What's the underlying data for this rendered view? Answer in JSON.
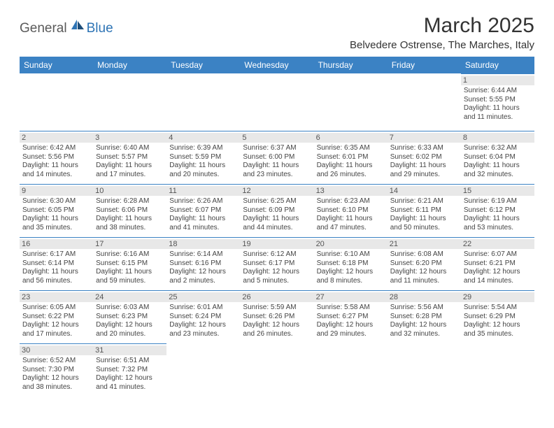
{
  "logo": {
    "part1": "General",
    "part2": "Blue"
  },
  "title": "March 2025",
  "subtitle": "Belvedere Ostrense, The Marches, Italy",
  "colors": {
    "header_bg": "#3b82c4",
    "header_text": "#ffffff",
    "cell_border": "#3b82c4",
    "daynum_bg": "#e8e8e8",
    "logo_grey": "#5a5a5a",
    "logo_blue": "#2e74b5",
    "body_text": "#444"
  },
  "dayNames": [
    "Sunday",
    "Monday",
    "Tuesday",
    "Wednesday",
    "Thursday",
    "Friday",
    "Saturday"
  ],
  "weeks": [
    [
      null,
      null,
      null,
      null,
      null,
      null,
      {
        "n": "1",
        "sr": "6:44 AM",
        "ss": "5:55 PM",
        "dl": "11 hours and 11 minutes."
      }
    ],
    [
      {
        "n": "2",
        "sr": "6:42 AM",
        "ss": "5:56 PM",
        "dl": "11 hours and 14 minutes."
      },
      {
        "n": "3",
        "sr": "6:40 AM",
        "ss": "5:57 PM",
        "dl": "11 hours and 17 minutes."
      },
      {
        "n": "4",
        "sr": "6:39 AM",
        "ss": "5:59 PM",
        "dl": "11 hours and 20 minutes."
      },
      {
        "n": "5",
        "sr": "6:37 AM",
        "ss": "6:00 PM",
        "dl": "11 hours and 23 minutes."
      },
      {
        "n": "6",
        "sr": "6:35 AM",
        "ss": "6:01 PM",
        "dl": "11 hours and 26 minutes."
      },
      {
        "n": "7",
        "sr": "6:33 AM",
        "ss": "6:02 PM",
        "dl": "11 hours and 29 minutes."
      },
      {
        "n": "8",
        "sr": "6:32 AM",
        "ss": "6:04 PM",
        "dl": "11 hours and 32 minutes."
      }
    ],
    [
      {
        "n": "9",
        "sr": "6:30 AM",
        "ss": "6:05 PM",
        "dl": "11 hours and 35 minutes."
      },
      {
        "n": "10",
        "sr": "6:28 AM",
        "ss": "6:06 PM",
        "dl": "11 hours and 38 minutes."
      },
      {
        "n": "11",
        "sr": "6:26 AM",
        "ss": "6:07 PM",
        "dl": "11 hours and 41 minutes."
      },
      {
        "n": "12",
        "sr": "6:25 AM",
        "ss": "6:09 PM",
        "dl": "11 hours and 44 minutes."
      },
      {
        "n": "13",
        "sr": "6:23 AM",
        "ss": "6:10 PM",
        "dl": "11 hours and 47 minutes."
      },
      {
        "n": "14",
        "sr": "6:21 AM",
        "ss": "6:11 PM",
        "dl": "11 hours and 50 minutes."
      },
      {
        "n": "15",
        "sr": "6:19 AM",
        "ss": "6:12 PM",
        "dl": "11 hours and 53 minutes."
      }
    ],
    [
      {
        "n": "16",
        "sr": "6:17 AM",
        "ss": "6:14 PM",
        "dl": "11 hours and 56 minutes."
      },
      {
        "n": "17",
        "sr": "6:16 AM",
        "ss": "6:15 PM",
        "dl": "11 hours and 59 minutes."
      },
      {
        "n": "18",
        "sr": "6:14 AM",
        "ss": "6:16 PM",
        "dl": "12 hours and 2 minutes."
      },
      {
        "n": "19",
        "sr": "6:12 AM",
        "ss": "6:17 PM",
        "dl": "12 hours and 5 minutes."
      },
      {
        "n": "20",
        "sr": "6:10 AM",
        "ss": "6:18 PM",
        "dl": "12 hours and 8 minutes."
      },
      {
        "n": "21",
        "sr": "6:08 AM",
        "ss": "6:20 PM",
        "dl": "12 hours and 11 minutes."
      },
      {
        "n": "22",
        "sr": "6:07 AM",
        "ss": "6:21 PM",
        "dl": "12 hours and 14 minutes."
      }
    ],
    [
      {
        "n": "23",
        "sr": "6:05 AM",
        "ss": "6:22 PM",
        "dl": "12 hours and 17 minutes."
      },
      {
        "n": "24",
        "sr": "6:03 AM",
        "ss": "6:23 PM",
        "dl": "12 hours and 20 minutes."
      },
      {
        "n": "25",
        "sr": "6:01 AM",
        "ss": "6:24 PM",
        "dl": "12 hours and 23 minutes."
      },
      {
        "n": "26",
        "sr": "5:59 AM",
        "ss": "6:26 PM",
        "dl": "12 hours and 26 minutes."
      },
      {
        "n": "27",
        "sr": "5:58 AM",
        "ss": "6:27 PM",
        "dl": "12 hours and 29 minutes."
      },
      {
        "n": "28",
        "sr": "5:56 AM",
        "ss": "6:28 PM",
        "dl": "12 hours and 32 minutes."
      },
      {
        "n": "29",
        "sr": "5:54 AM",
        "ss": "6:29 PM",
        "dl": "12 hours and 35 minutes."
      }
    ],
    [
      {
        "n": "30",
        "sr": "6:52 AM",
        "ss": "7:30 PM",
        "dl": "12 hours and 38 minutes."
      },
      {
        "n": "31",
        "sr": "6:51 AM",
        "ss": "7:32 PM",
        "dl": "12 hours and 41 minutes."
      },
      null,
      null,
      null,
      null,
      null
    ]
  ],
  "labels": {
    "sunrise": "Sunrise:",
    "sunset": "Sunset:",
    "daylight": "Daylight:"
  }
}
